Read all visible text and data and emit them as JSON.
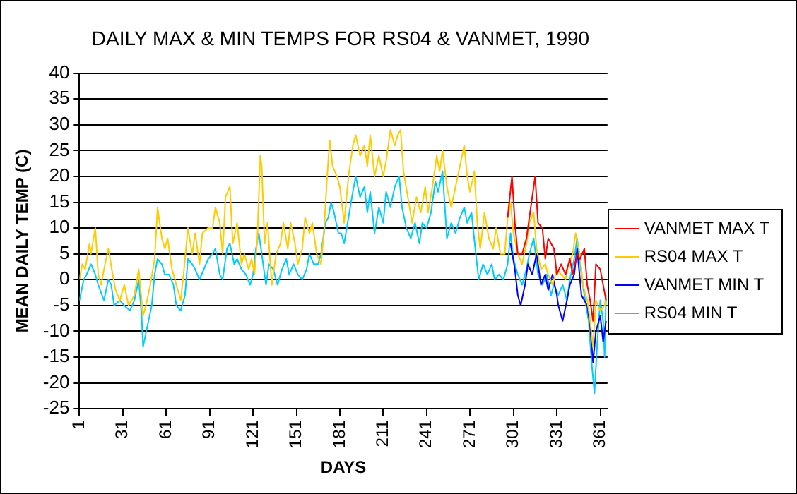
{
  "chart_data": {
    "type": "line",
    "title": "DAILY MAX & MIN TEMPS FOR RS04 & VANMET, 1990",
    "xlabel": "DAYS",
    "ylabel": "MEAN DAILY TEMP (C)",
    "xlim": [
      1,
      366
    ],
    "xticks": [
      1,
      31,
      61,
      91,
      121,
      151,
      181,
      211,
      241,
      271,
      301,
      331,
      361
    ],
    "ylim": [
      -25,
      40
    ],
    "yticks": [
      -25,
      -20,
      -15,
      -10,
      -5,
      0,
      5,
      10,
      15,
      20,
      25,
      30,
      35,
      40
    ],
    "grid": "y",
    "legend": "right",
    "marker": "none",
    "line_style": "solid",
    "series": [
      {
        "name": "VANMET MAX T",
        "color": "#ff0000",
        "x": [
          297,
          300,
          302,
          304,
          307,
          310,
          312,
          315,
          316,
          318,
          321,
          323,
          325,
          329,
          331,
          334,
          337,
          340,
          342,
          345,
          347,
          350,
          352,
          354,
          356,
          358,
          361,
          363,
          365
        ],
        "values": [
          12,
          20,
          11,
          5,
          5,
          8,
          12,
          18,
          20,
          11,
          10,
          4,
          8,
          6,
          1,
          3,
          1,
          4,
          1,
          5,
          4,
          6,
          -1,
          -4,
          -8,
          3,
          2,
          -1,
          -4
        ]
      },
      {
        "name": "RS04 MAX T",
        "color": "#ffcc00",
        "x": [
          1,
          3,
          5,
          8,
          9,
          12,
          14,
          16,
          18,
          21,
          24,
          26,
          29,
          32,
          35,
          39,
          42,
          45,
          47,
          50,
          53,
          55,
          58,
          60,
          62,
          65,
          68,
          71,
          73,
          76,
          79,
          81,
          84,
          86,
          90,
          93,
          95,
          98,
          100,
          102,
          105,
          107,
          110,
          113,
          115,
          118,
          120,
          122,
          124,
          126,
          127,
          129,
          131,
          134,
          137,
          140,
          142,
          145,
          147,
          150,
          152,
          155,
          157,
          160,
          162,
          165,
          168,
          170,
          172,
          174,
          176,
          179,
          181,
          184,
          187,
          190,
          192,
          195,
          198,
          200,
          202,
          205,
          208,
          211,
          213,
          216,
          219,
          221,
          223,
          225,
          228,
          231,
          234,
          237,
          240,
          242,
          245,
          248,
          250,
          252,
          255,
          258,
          261,
          264,
          267,
          269,
          271,
          274,
          276,
          278,
          281,
          284,
          287,
          289,
          292,
          295,
          297,
          299,
          301,
          304,
          307,
          310,
          312,
          315,
          317,
          320,
          323,
          325,
          328,
          331,
          334,
          337,
          339,
          342,
          344,
          347,
          349,
          352,
          354,
          356,
          358,
          361,
          364,
          365
        ],
        "values": [
          0,
          3,
          2,
          7,
          5,
          10,
          1,
          -1,
          2,
          6,
          1,
          -2,
          -4,
          -1,
          -5,
          -3,
          2,
          -7,
          -5,
          -1,
          4,
          14,
          8,
          6,
          8,
          2,
          -1,
          -4,
          1,
          10,
          5,
          9,
          3,
          9,
          10,
          10,
          14,
          11,
          5,
          16,
          18,
          7,
          11,
          3,
          5,
          2,
          4,
          1,
          8,
          24,
          22,
          7,
          11,
          -1,
          5,
          7,
          11,
          6,
          11,
          7,
          3,
          6,
          12,
          9,
          11,
          5,
          3,
          9,
          19,
          27,
          22,
          20,
          18,
          11,
          20,
          26,
          28,
          24,
          26,
          22,
          28,
          20,
          24,
          20,
          23,
          29,
          26,
          28,
          29,
          21,
          16,
          11,
          16,
          13,
          18,
          13,
          18,
          24,
          21,
          25,
          18,
          14,
          18,
          22,
          26,
          20,
          17,
          21,
          11,
          6,
          13,
          8,
          6,
          10,
          5,
          5,
          12,
          15,
          9,
          5,
          3,
          7,
          11,
          13,
          6,
          2,
          3,
          1,
          -1,
          2,
          1,
          0,
          3,
          5,
          9,
          5,
          -1,
          -4,
          -8,
          -13,
          -4,
          -6,
          -5,
          -3
        ]
      },
      {
        "name": "VANMET MIN T",
        "color": "#0000ff",
        "x": [
          299,
          302,
          304,
          306,
          309,
          311,
          314,
          317,
          320,
          323,
          325,
          328,
          331,
          332,
          335,
          338,
          340,
          343,
          345,
          348,
          350,
          352,
          354,
          356,
          358,
          361,
          363,
          365
        ],
        "values": [
          7,
          2,
          -3,
          -5,
          -1,
          3,
          1,
          5,
          -1,
          1,
          -2,
          1,
          -3,
          -5,
          -8,
          -4,
          -1,
          1,
          6,
          -3,
          -4,
          -5,
          -9,
          -16,
          -10,
          -7,
          -12,
          -8
        ]
      },
      {
        "name": "RS04 MIN T",
        "color": "#00ccff",
        "x": [
          1,
          4,
          6,
          9,
          12,
          14,
          18,
          21,
          23,
          25,
          29,
          32,
          36,
          39,
          42,
          44,
          45,
          48,
          51,
          53,
          55,
          58,
          60,
          63,
          66,
          68,
          71,
          74,
          76,
          79,
          81,
          84,
          87,
          90,
          93,
          95,
          98,
          100,
          103,
          105,
          108,
          110,
          113,
          116,
          119,
          121,
          123,
          125,
          128,
          130,
          132,
          135,
          138,
          141,
          144,
          146,
          149,
          152,
          155,
          158,
          160,
          163,
          166,
          168,
          171,
          173,
          175,
          177,
          180,
          182,
          184,
          187,
          190,
          192,
          195,
          198,
          200,
          202,
          205,
          208,
          211,
          213,
          216,
          219,
          222,
          224,
          227,
          230,
          233,
          236,
          238,
          241,
          244,
          247,
          249,
          252,
          255,
          258,
          261,
          264,
          267,
          269,
          272,
          275,
          277,
          280,
          283,
          286,
          288,
          291,
          294,
          297,
          299,
          301,
          304,
          307,
          310,
          312,
          315,
          318,
          321,
          324,
          327,
          329,
          332,
          335,
          338,
          340,
          343,
          345,
          348,
          350,
          353,
          355,
          357,
          359,
          361,
          363,
          364,
          365
        ],
        "values": [
          -4,
          0,
          1,
          3,
          1,
          -1,
          -4,
          0,
          -1,
          -5,
          -4,
          -5,
          -6,
          -4,
          0,
          -7,
          -13,
          -9,
          -5,
          1,
          4,
          3,
          1,
          1,
          -1,
          -5,
          -6,
          -3,
          4,
          3,
          2,
          0,
          2,
          4,
          5,
          6,
          1,
          0,
          6,
          7,
          3,
          4,
          2,
          1,
          -1,
          1,
          6,
          9,
          3,
          -1,
          3,
          2,
          -1,
          2,
          4,
          1,
          3,
          1,
          0,
          2,
          5,
          3,
          3,
          5,
          11,
          12,
          15,
          13,
          9,
          9,
          7,
          12,
          17,
          20,
          16,
          18,
          13,
          17,
          9,
          14,
          11,
          17,
          14,
          18,
          20,
          14,
          10,
          8,
          11,
          7,
          11,
          10,
          13,
          19,
          17,
          21,
          8,
          11,
          9,
          12,
          14,
          11,
          13,
          5,
          0,
          3,
          1,
          3,
          0,
          1,
          0,
          3,
          9,
          4,
          1,
          -1,
          2,
          5,
          8,
          1,
          -1,
          1,
          -3,
          -1,
          -3,
          -1,
          -4,
          0,
          4,
          8,
          1,
          -3,
          -8,
          -16,
          -22,
          -12,
          -4,
          -8,
          -15,
          -3
        ]
      }
    ]
  }
}
